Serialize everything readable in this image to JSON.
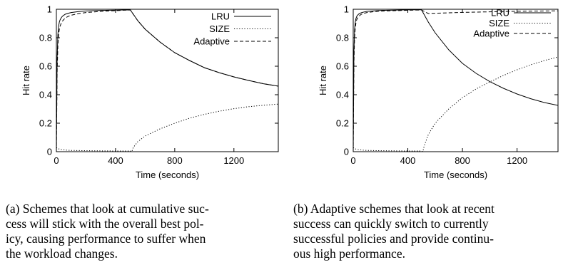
{
  "chart_data": [
    {
      "type": "line",
      "title": "",
      "xlabel": "Time (seconds)",
      "ylabel": "Hit rate",
      "xlim": [
        0,
        1500
      ],
      "ylim": [
        0,
        1
      ],
      "xticks": [
        0,
        400,
        800,
        1200
      ],
      "yticks": [
        0,
        0.2,
        0.4,
        0.6,
        0.8,
        1
      ],
      "legend_position": "top-right",
      "series": [
        {
          "name": "LRU",
          "style": "solid",
          "x": [
            0,
            5,
            10,
            15,
            20,
            25,
            30,
            40,
            50,
            60,
            80,
            100,
            150,
            200,
            300,
            400,
            450,
            500,
            550,
            600,
            700,
            800,
            900,
            1000,
            1100,
            1200,
            1300,
            1400,
            1500
          ],
          "y": [
            0,
            0.65,
            0.82,
            0.88,
            0.91,
            0.925,
            0.935,
            0.95,
            0.958,
            0.965,
            0.972,
            0.977,
            0.984,
            0.988,
            0.992,
            0.994,
            0.995,
            0.995,
            0.92,
            0.86,
            0.77,
            0.695,
            0.64,
            0.59,
            0.555,
            0.525,
            0.5,
            0.477,
            0.46
          ]
        },
        {
          "name": "SIZE",
          "style": "dotted",
          "x": [
            0,
            2,
            5,
            10,
            15,
            20,
            30,
            40,
            60,
            80,
            100,
            150,
            200,
            300,
            400,
            450,
            500,
            510,
            520,
            550,
            600,
            700,
            800,
            900,
            1000,
            1100,
            1200,
            1300,
            1400,
            1500
          ],
          "y": [
            0.03,
            0.028,
            0.025,
            0.022,
            0.02,
            0.018,
            0.016,
            0.014,
            0.012,
            0.01,
            0.009,
            0.008,
            0.007,
            0.006,
            0.005,
            0.005,
            0.005,
            0.0,
            0.03,
            0.07,
            0.11,
            0.16,
            0.2,
            0.235,
            0.262,
            0.284,
            0.302,
            0.316,
            0.326,
            0.334
          ]
        },
        {
          "name": "Adaptive",
          "style": "dashed",
          "x": [
            0,
            5,
            10,
            15,
            20,
            25,
            30,
            40,
            50,
            60,
            80,
            100,
            150,
            200,
            300,
            400,
            450,
            500,
            550,
            600,
            700,
            800,
            900,
            1000,
            1100,
            1200,
            1300,
            1400,
            1500
          ],
          "y": [
            0,
            0.55,
            0.74,
            0.82,
            0.86,
            0.88,
            0.895,
            0.915,
            0.928,
            0.938,
            0.95,
            0.958,
            0.97,
            0.977,
            0.985,
            0.99,
            0.993,
            0.995,
            0.92,
            0.86,
            0.77,
            0.695,
            0.64,
            0.59,
            0.555,
            0.525,
            0.5,
            0.477,
            0.46
          ]
        }
      ]
    },
    {
      "type": "line",
      "title": "",
      "xlabel": "Time (seconds)",
      "ylabel": "Hit rate",
      "xlim": [
        0,
        1500
      ],
      "ylim": [
        0,
        1
      ],
      "xticks": [
        0,
        400,
        800,
        1200
      ],
      "yticks": [
        0,
        0.2,
        0.4,
        0.6,
        0.8,
        1
      ],
      "legend_position": "top-right",
      "series": [
        {
          "name": "LRU",
          "style": "solid",
          "x": [
            0,
            5,
            10,
            15,
            20,
            25,
            30,
            40,
            50,
            60,
            80,
            100,
            150,
            200,
            300,
            400,
            450,
            500,
            550,
            600,
            700,
            800,
            900,
            1000,
            1100,
            1200,
            1300,
            1400,
            1500
          ],
          "y": [
            0,
            0.7,
            0.86,
            0.91,
            0.935,
            0.948,
            0.956,
            0.966,
            0.972,
            0.976,
            0.981,
            0.985,
            0.989,
            0.992,
            0.994,
            0.996,
            0.996,
            0.996,
            0.91,
            0.835,
            0.715,
            0.62,
            0.55,
            0.492,
            0.445,
            0.405,
            0.372,
            0.345,
            0.325
          ]
        },
        {
          "name": "SIZE",
          "style": "dotted",
          "x": [
            0,
            2,
            5,
            10,
            15,
            20,
            30,
            40,
            60,
            80,
            100,
            150,
            200,
            300,
            400,
            450,
            500,
            510,
            520,
            550,
            600,
            700,
            800,
            900,
            1000,
            1100,
            1200,
            1300,
            1400,
            1500
          ],
          "y": [
            0.03,
            0.028,
            0.025,
            0.022,
            0.02,
            0.018,
            0.016,
            0.014,
            0.012,
            0.01,
            0.009,
            0.008,
            0.007,
            0.006,
            0.005,
            0.005,
            0.005,
            0.0,
            0.04,
            0.12,
            0.2,
            0.3,
            0.38,
            0.44,
            0.49,
            0.535,
            0.575,
            0.61,
            0.64,
            0.665
          ]
        },
        {
          "name": "Adaptive",
          "style": "dashed",
          "x": [
            0,
            5,
            10,
            15,
            20,
            25,
            30,
            40,
            50,
            60,
            80,
            100,
            150,
            200,
            300,
            400,
            450,
            500,
            550,
            600,
            700,
            800,
            900,
            1000,
            1100,
            1200,
            1300,
            1400,
            1500
          ],
          "y": [
            0,
            0.62,
            0.8,
            0.87,
            0.905,
            0.925,
            0.936,
            0.95,
            0.958,
            0.965,
            0.972,
            0.977,
            0.983,
            0.987,
            0.99,
            0.993,
            0.994,
            0.995,
            0.97,
            0.972,
            0.975,
            0.978,
            0.98,
            0.982,
            0.984,
            0.986,
            0.987,
            0.988,
            0.989
          ]
        }
      ]
    }
  ],
  "captions": [
    {
      "lines": [
        "(a) Schemes that look at cumulative suc-",
        "cess will stick with the overall best pol-",
        "icy, causing performance to suffer when",
        "the workload changes."
      ]
    },
    {
      "lines": [
        "(b) Adaptive schemes that look at recent",
        "success can quickly switch to currently",
        "successful policies and provide continu-",
        "ous high performance."
      ]
    }
  ]
}
